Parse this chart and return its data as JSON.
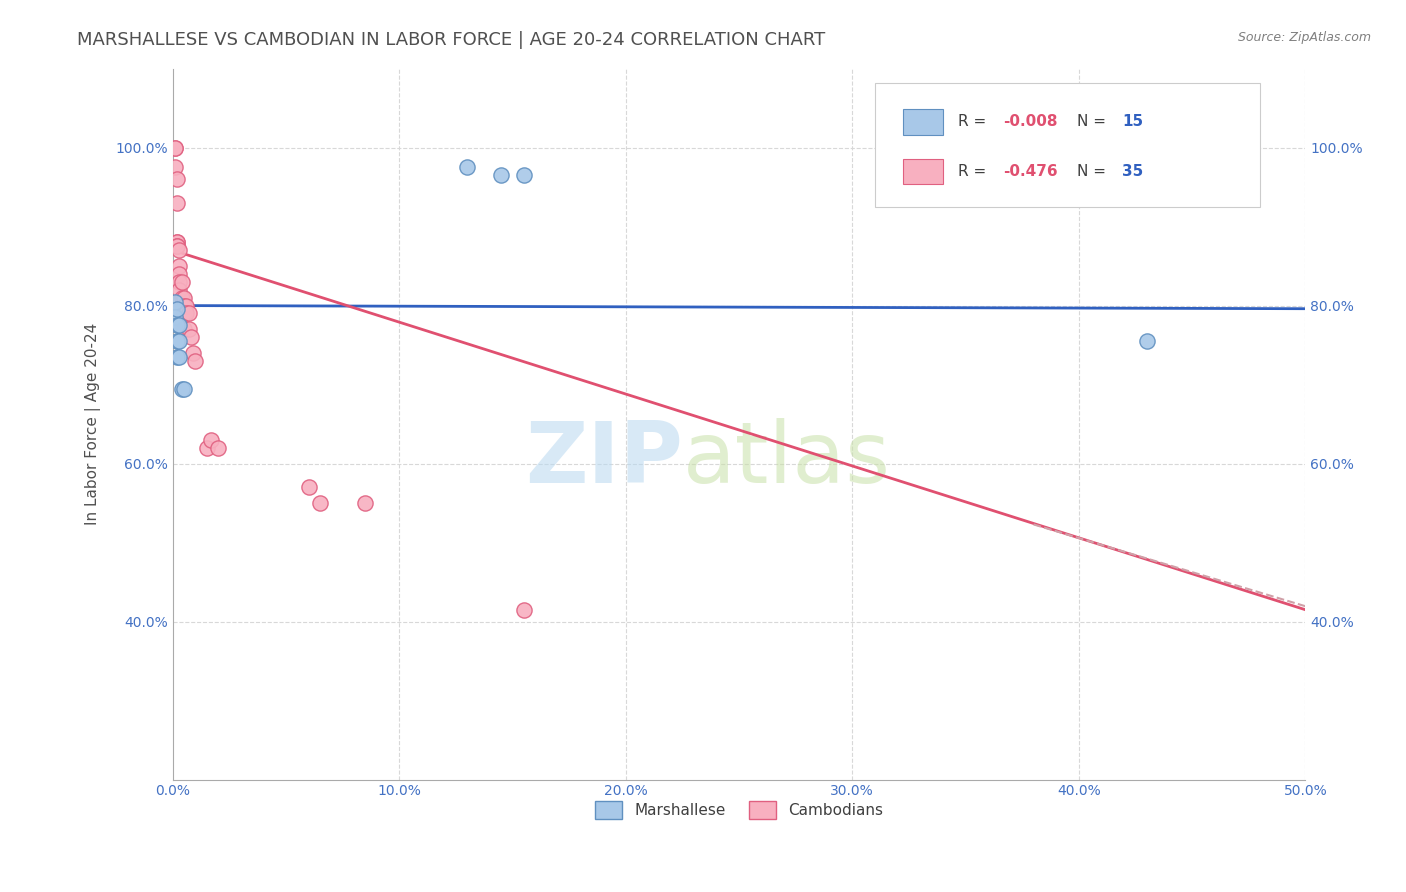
{
  "title": "MARSHALLESE VS CAMBODIAN IN LABOR FORCE | AGE 20-24 CORRELATION CHART",
  "source": "Source: ZipAtlas.com",
  "ylabel": "In Labor Force | Age 20-24",
  "xlim": [
    0.0,
    0.5
  ],
  "ylim": [
    0.2,
    1.1
  ],
  "xticks": [
    0.0,
    0.1,
    0.2,
    0.3,
    0.4,
    0.5
  ],
  "xtick_labels": [
    "0.0%",
    "10.0%",
    "20.0%",
    "30.0%",
    "40.0%",
    "50.0%"
  ],
  "yticks": [
    0.4,
    0.6,
    0.8,
    1.0
  ],
  "ytick_labels": [
    "40.0%",
    "60.0%",
    "80.0%",
    "100.0%"
  ],
  "legend_r_blue": "R = -0.008",
  "legend_n_blue": "N = 15",
  "legend_r_pink": "R = -0.476",
  "legend_n_pink": "N = 35",
  "legend_labels_bottom": [
    "Marshallese",
    "Cambodians"
  ],
  "marshallese_scatter": {
    "x": [
      0.001,
      0.001,
      0.002,
      0.002,
      0.002,
      0.002,
      0.003,
      0.003,
      0.003,
      0.004,
      0.005,
      0.13,
      0.145,
      0.155,
      0.43
    ],
    "y": [
      0.805,
      0.785,
      0.795,
      0.775,
      0.755,
      0.735,
      0.775,
      0.755,
      0.735,
      0.695,
      0.695,
      0.975,
      0.965,
      0.965,
      0.755
    ],
    "color": "#a8c8e8",
    "edgecolor": "#6090c0",
    "size": 120
  },
  "cambodian_scatter": {
    "x": [
      0.001,
      0.001,
      0.001,
      0.002,
      0.002,
      0.002,
      0.002,
      0.002,
      0.002,
      0.003,
      0.003,
      0.003,
      0.003,
      0.003,
      0.004,
      0.004,
      0.004,
      0.005,
      0.005,
      0.005,
      0.005,
      0.006,
      0.006,
      0.007,
      0.007,
      0.008,
      0.009,
      0.01,
      0.015,
      0.017,
      0.02,
      0.06,
      0.065,
      0.085,
      0.155
    ],
    "y": [
      1.0,
      1.0,
      0.975,
      0.96,
      0.93,
      0.88,
      0.88,
      0.875,
      0.875,
      0.87,
      0.85,
      0.84,
      0.83,
      0.82,
      0.83,
      0.81,
      0.8,
      0.81,
      0.8,
      0.79,
      0.77,
      0.8,
      0.79,
      0.79,
      0.77,
      0.76,
      0.74,
      0.73,
      0.62,
      0.63,
      0.62,
      0.57,
      0.55,
      0.55,
      0.415
    ],
    "color": "#f8b0c0",
    "edgecolor": "#e06080",
    "size": 120
  },
  "blue_line": {
    "x": [
      0.0,
      0.5
    ],
    "y": [
      0.8,
      0.796
    ],
    "color": "#3060c0",
    "linewidth": 2.0
  },
  "pink_line": {
    "x": [
      0.0,
      0.5
    ],
    "y": [
      0.87,
      0.415
    ],
    "color": "#e05070",
    "linewidth": 2.0
  },
  "dashed_line": {
    "x": [
      0.38,
      0.65
    ],
    "y": [
      0.523,
      0.29
    ],
    "color": "#d0a0a8",
    "linewidth": 1.5,
    "linestyle": "--"
  },
  "watermark_zip": "ZIP",
  "watermark_atlas": "atlas",
  "background_color": "#ffffff",
  "grid_color": "#d8d8d8",
  "title_color": "#505050",
  "axis_color": "#4472c4",
  "title_fontsize": 13,
  "axis_label_fontsize": 11
}
